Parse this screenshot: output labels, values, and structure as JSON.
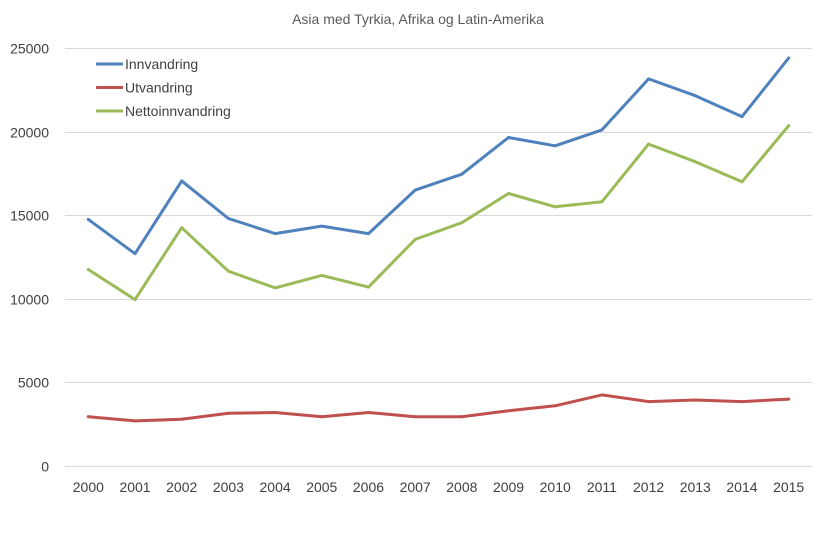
{
  "chart_data": {
    "type": "line",
    "title": "Asia med Tyrkia, Afrika og Latin-Amerika",
    "xlabel": "",
    "ylabel": "",
    "categories": [
      "2000",
      "2001",
      "2002",
      "2003",
      "2004",
      "2005",
      "2006",
      "2007",
      "2008",
      "2009",
      "2010",
      "2011",
      "2012",
      "2013",
      "2014",
      "2015"
    ],
    "ylim": [
      0,
      25000
    ],
    "yticks": [
      0,
      5000,
      10000,
      15000,
      20000,
      25000
    ],
    "ytick_labels": [
      "0",
      "5000",
      "10000",
      "15000",
      "20000",
      "25000"
    ],
    "grid": "horizontal",
    "legend_position": "top-left",
    "series": [
      {
        "name": "Innvandring",
        "color": "#4f81bd",
        "values": [
          14750,
          12700,
          17050,
          14800,
          13900,
          14350,
          13900,
          16500,
          17450,
          19650,
          19150,
          20100,
          23150,
          22150,
          20900,
          24400
        ]
      },
      {
        "name": "Utvandring",
        "color": "#c0504d",
        "values": [
          2950,
          2700,
          2800,
          3150,
          3200,
          2950,
          3200,
          2950,
          2950,
          3300,
          3600,
          4250,
          3850,
          3950,
          3850,
          4000
        ]
      },
      {
        "name": "Nettoinnvandring",
        "color": "#9bbb59",
        "values": [
          11750,
          9950,
          14250,
          11650,
          10650,
          11400,
          10700,
          13550,
          14550,
          16300,
          15500,
          15800,
          19250,
          18200,
          17000,
          20350
        ]
      }
    ]
  }
}
